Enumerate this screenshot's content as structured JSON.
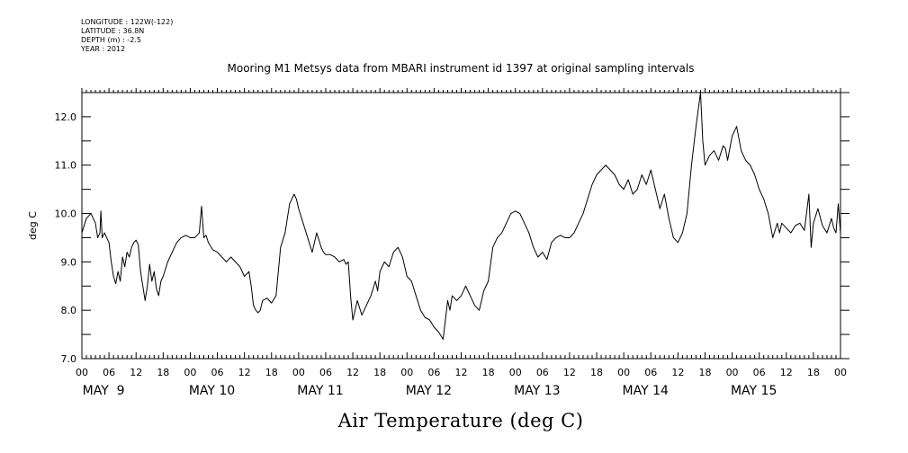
{
  "header": {
    "lines": [
      "LONGITUDE : 122W(-122)",
      "LATITUDE : 36.8N",
      "DEPTH (m) : -2.5",
      "YEAR : 2012"
    ]
  },
  "chart_data": {
    "type": "line",
    "title": "Mooring M1 Metsys data from MBARI instrument id 1397 at original sampling intervals",
    "xlabel": "Air Temperature (deg C)",
    "ylabel": "deg C",
    "ylim": [
      7.0,
      12.5
    ],
    "y_ticks": [
      "7.0",
      "8.0",
      "9.0",
      "10.0",
      "11.0",
      "12.0"
    ],
    "y_tick_values": [
      7.0,
      8.0,
      9.0,
      10.0,
      11.0,
      12.0
    ],
    "xlim_hours": [
      0,
      168
    ],
    "x_ticks": [
      "00",
      "06",
      "12",
      "18",
      "00",
      "06",
      "12",
      "18",
      "00",
      "06",
      "12",
      "18",
      "00",
      "06",
      "12",
      "18",
      "00",
      "06",
      "12",
      "18",
      "00",
      "06",
      "12",
      "18",
      "00",
      "06",
      "12",
      "18",
      "00"
    ],
    "x_tick_hours": [
      0,
      6,
      12,
      18,
      24,
      30,
      36,
      42,
      48,
      54,
      60,
      66,
      72,
      78,
      84,
      90,
      96,
      102,
      108,
      114,
      120,
      126,
      132,
      138,
      144,
      150,
      156,
      162,
      168
    ],
    "day_labels": [
      "MAY  9",
      "MAY 10",
      "MAY 11",
      "MAY 12",
      "MAY 13",
      "MAY 14",
      "MAY 15"
    ],
    "day_label_hours": [
      6,
      30,
      54,
      78,
      102,
      126,
      150
    ],
    "grid": false,
    "color": "#000000",
    "series": [
      {
        "x": [
          0,
          1,
          2,
          3,
          3.5,
          4,
          4.2,
          4.5,
          5,
          6,
          6.5,
          7,
          7.5,
          8,
          8.5,
          9,
          9.5,
          10,
          10.5,
          11,
          11.5,
          12,
          12.5,
          13,
          13.5,
          14,
          14.5,
          15,
          15.5,
          16,
          16.5,
          17,
          17.5,
          18,
          19,
          20,
          21,
          22,
          23,
          24,
          25,
          26,
          26.5,
          27,
          27.5,
          28,
          29,
          30,
          31,
          32,
          33,
          34,
          35,
          36,
          37,
          37.5,
          38,
          38.5,
          39,
          39.5,
          40,
          41,
          42,
          43,
          44,
          45,
          46,
          47,
          47.5,
          48,
          49,
          50,
          51,
          52,
          53,
          53.5,
          54,
          55,
          56,
          57,
          58,
          58.5,
          59,
          59.5,
          60,
          61,
          62,
          63,
          64,
          65,
          65.5,
          66,
          67,
          68,
          69,
          70,
          71,
          72,
          73,
          74,
          75,
          76,
          77,
          78,
          79,
          80,
          80.5,
          81,
          81.5,
          82,
          83,
          84,
          85,
          86,
          87,
          88,
          89,
          89.5,
          90,
          91,
          92,
          93,
          94,
          95,
          96,
          97,
          98,
          99,
          100,
          101,
          102,
          103,
          104,
          105,
          106,
          107,
          108,
          109,
          110,
          111,
          112,
          113,
          114,
          115,
          116,
          117,
          118,
          119,
          120,
          121,
          122,
          123,
          124,
          125,
          126,
          127,
          128,
          129,
          130,
          130.5,
          131,
          132,
          133,
          134,
          134.5,
          135,
          136,
          137,
          137.5,
          138,
          139,
          140,
          141,
          142,
          142.5,
          143,
          144,
          145,
          146,
          146.5,
          147,
          148,
          149,
          150,
          151,
          152,
          153,
          154,
          154.5,
          155,
          156,
          157,
          158,
          159,
          160,
          161,
          161.5,
          162,
          163,
          164,
          165,
          166,
          166.5,
          167,
          167.5,
          168
        ],
        "y": [
          9.6,
          9.9,
          10.0,
          9.8,
          9.5,
          9.6,
          10.05,
          9.5,
          9.6,
          9.4,
          9.0,
          8.7,
          8.55,
          8.8,
          8.6,
          9.1,
          8.9,
          9.2,
          9.1,
          9.3,
          9.4,
          9.45,
          9.35,
          8.8,
          8.5,
          8.2,
          8.5,
          8.95,
          8.6,
          8.8,
          8.45,
          8.3,
          8.6,
          8.7,
          9.0,
          9.2,
          9.4,
          9.5,
          9.55,
          9.5,
          9.5,
          9.6,
          10.15,
          9.5,
          9.55,
          9.4,
          9.25,
          9.2,
          9.1,
          9.0,
          9.1,
          9.0,
          8.9,
          8.7,
          8.8,
          8.5,
          8.1,
          8.0,
          7.95,
          8.0,
          8.2,
          8.25,
          8.15,
          8.3,
          9.3,
          9.6,
          10.2,
          10.4,
          10.3,
          10.1,
          9.8,
          9.5,
          9.2,
          9.6,
          9.3,
          9.2,
          9.15,
          9.15,
          9.1,
          9.0,
          9.05,
          8.95,
          9.0,
          8.3,
          7.8,
          8.2,
          7.9,
          8.1,
          8.3,
          8.6,
          8.4,
          8.8,
          9.0,
          8.9,
          9.2,
          9.3,
          9.1,
          8.7,
          8.6,
          8.3,
          8.0,
          7.85,
          7.8,
          7.65,
          7.55,
          7.4,
          7.8,
          8.2,
          8.0,
          8.3,
          8.2,
          8.3,
          8.5,
          8.3,
          8.1,
          8.0,
          8.4,
          8.5,
          8.6,
          9.3,
          9.5,
          9.6,
          9.8,
          10.0,
          10.05,
          10.0,
          9.8,
          9.6,
          9.3,
          9.1,
          9.2,
          9.05,
          9.4,
          9.5,
          9.55,
          9.5,
          9.5,
          9.6,
          9.8,
          10.0,
          10.3,
          10.6,
          10.8,
          10.9,
          11.0,
          10.9,
          10.8,
          10.6,
          10.5,
          10.7,
          10.4,
          10.5,
          10.8,
          10.6,
          10.9,
          10.5,
          10.1,
          10.4,
          9.9,
          9.7,
          9.5,
          9.4,
          9.6,
          10.0,
          10.5,
          11.0,
          11.8,
          12.5,
          11.5,
          11.0,
          11.2,
          11.3,
          11.1,
          11.4,
          11.35,
          11.1,
          11.6,
          11.8,
          11.3,
          11.2,
          11.1,
          11.0,
          10.8,
          10.5,
          10.3,
          10.0,
          9.5,
          9.8,
          9.6,
          9.8,
          9.7,
          9.6,
          9.75,
          9.8,
          9.65,
          10.4,
          9.3,
          9.8,
          10.1,
          9.75,
          9.6,
          9.9,
          9.7,
          9.6,
          10.2,
          9.6
        ]
      }
    ]
  }
}
